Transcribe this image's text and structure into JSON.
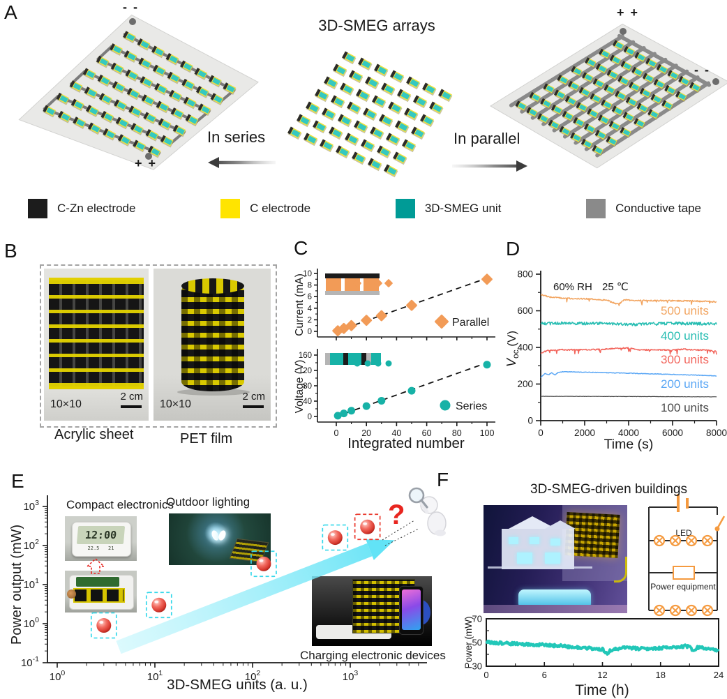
{
  "figure": {
    "panel_labels": {
      "A": "A",
      "B": "B",
      "C": "C",
      "D": "D",
      "E": "E",
      "F": "F"
    }
  },
  "panelA": {
    "title": "3D-SMEG arrays",
    "in_series": "In series",
    "in_parallel": "In parallel",
    "terminals": {
      "left_top": "- -",
      "left_bottom": "+ +",
      "right_top": "+ +",
      "right_side": "- -"
    },
    "legend": [
      {
        "name": "C-Zn electrode",
        "color": "#1c1c1c"
      },
      {
        "name": "C electrode",
        "color": "#ffe400"
      },
      {
        "name": "3D-SMEG unit",
        "color": "#009b96"
      },
      {
        "name": "Conductive tape",
        "color": "#8a8a8a"
      }
    ]
  },
  "panelB": {
    "photos": [
      {
        "label": "10×10",
        "scale": "2 cm",
        "caption": "Acrylic sheet"
      },
      {
        "label": "10×10",
        "scale": "2 cm",
        "caption": "PET film"
      }
    ]
  },
  "panelE": {
    "insets": {
      "compact": "Compact electronics",
      "outdoor": "Outdoor lighting",
      "charging": "Charging electronic devices"
    },
    "question_mark": "?",
    "clock": {
      "time": "12:00",
      "temp": "22.5",
      "hum": "21"
    }
  },
  "panelF": {
    "title": "3D-SMEG-driven buildings",
    "circuit": {
      "led_label": "LED",
      "equipment_label": "Power equipment",
      "accent": "#f59a3f"
    }
  },
  "chart_data": [
    {
      "id": "c_top",
      "panel": "C",
      "type": "scatter",
      "ylabel": "Current (mA)",
      "ylim": [
        0,
        10
      ],
      "yticks": [
        0,
        2,
        4,
        6,
        8,
        10
      ],
      "xlim": [
        0,
        100
      ],
      "xticks": [
        0,
        20,
        40,
        60,
        80,
        100
      ],
      "series": [
        {
          "name": "Parallel",
          "marker": "diamond",
          "color": "#f29b57",
          "x": [
            1,
            5,
            10,
            20,
            30,
            50,
            100
          ],
          "y": [
            0.1,
            0.5,
            1.0,
            1.9,
            2.7,
            4.5,
            9.0
          ]
        }
      ],
      "trend": [
        [
          0,
          0
        ],
        [
          100,
          9.2
        ]
      ]
    },
    {
      "id": "c_bottom",
      "panel": "C",
      "type": "scatter",
      "ylabel": "Voltage (V)",
      "ylim": [
        0,
        160
      ],
      "yticks": [
        0,
        40,
        80,
        120,
        160
      ],
      "xlabel": "Integrated number",
      "xlim": [
        0,
        100
      ],
      "xticks": [
        0,
        20,
        40,
        60,
        80,
        100
      ],
      "series": [
        {
          "name": "Series",
          "marker": "circle",
          "color": "#17b2a7",
          "x": [
            1,
            5,
            10,
            20,
            30,
            50,
            100
          ],
          "y": [
            2,
            8,
            15,
            27,
            41,
            67,
            135
          ]
        }
      ],
      "trend": [
        [
          0,
          0
        ],
        [
          100,
          140
        ]
      ]
    },
    {
      "id": "d",
      "panel": "D",
      "type": "line",
      "xlabel": "Time (s)",
      "xlim": [
        0,
        8000
      ],
      "xticks": [
        0,
        2000,
        4000,
        6000,
        8000
      ],
      "ylabel_main": "V",
      "ylabel_sub": "oc",
      "ylabel_unit": " (V)",
      "ylim": [
        0,
        800
      ],
      "yticks": [
        0,
        200,
        400,
        600,
        800
      ],
      "annotation": {
        "text1": "60% RH",
        "text2": "25 ℃",
        "color": "#e8251f"
      },
      "series": [
        {
          "name": "500 units",
          "color": "#f2a45f",
          "noise": 3.5,
          "spiky": true,
          "profile": [
            [
              0,
              688
            ],
            [
              400,
              675
            ],
            [
              1200,
              668
            ],
            [
              2400,
              664
            ],
            [
              2800,
              657
            ],
            [
              3000,
              661
            ],
            [
              3200,
              648
            ],
            [
              3400,
              640
            ],
            [
              3600,
              641
            ],
            [
              3800,
              659
            ],
            [
              4200,
              657
            ],
            [
              5000,
              656
            ],
            [
              6000,
              655
            ],
            [
              7000,
              653
            ],
            [
              8000,
              649
            ]
          ]
        },
        {
          "name": "400 units",
          "color": "#27bdb2",
          "noise": 8,
          "spiky": false,
          "profile": [
            [
              0,
              530
            ],
            [
              1000,
              532
            ],
            [
              2000,
              530
            ],
            [
              3000,
              531
            ],
            [
              4000,
              525
            ],
            [
              5000,
              528
            ],
            [
              6000,
              532
            ],
            [
              7000,
              530
            ],
            [
              8000,
              528
            ]
          ]
        },
        {
          "name": "300 units",
          "color": "#f2655c",
          "noise": 3.5,
          "spiky": true,
          "profile": [
            [
              0,
              368
            ],
            [
              300,
              382
            ],
            [
              1000,
              387
            ],
            [
              2000,
              387
            ],
            [
              3000,
              390
            ],
            [
              3500,
              396
            ],
            [
              4000,
              397
            ],
            [
              4500,
              386
            ],
            [
              5000,
              387
            ],
            [
              6000,
              386
            ],
            [
              6500,
              390
            ],
            [
              7000,
              387
            ],
            [
              7500,
              385
            ],
            [
              8000,
              377
            ]
          ]
        },
        {
          "name": "200 units",
          "color": "#5ba7f5",
          "noise": 1.5,
          "spiky": false,
          "profile": [
            [
              0,
              236
            ],
            [
              200,
              258
            ],
            [
              350,
              250
            ],
            [
              500,
              262
            ],
            [
              650,
              250
            ],
            [
              800,
              264
            ],
            [
              1000,
              267
            ],
            [
              1500,
              266
            ],
            [
              3000,
              262
            ],
            [
              5000,
              256
            ],
            [
              7000,
              249
            ],
            [
              8000,
              244
            ]
          ]
        },
        {
          "name": "100 units",
          "color": "#4a4a4a",
          "noise": 0.7,
          "spiky": false,
          "profile": [
            [
              0,
              133
            ],
            [
              4000,
              132
            ],
            [
              8000,
              130
            ]
          ]
        }
      ]
    },
    {
      "id": "e",
      "panel": "E",
      "type": "scatter",
      "xlabel": "3D-SMEG units (a. u.)",
      "ylabel": "Power output (mW)",
      "xscale": "log",
      "yscale": "log",
      "x_exp_ticks": [
        0,
        1,
        2,
        3
      ],
      "y_exp_ticks": [
        -1,
        0,
        1,
        2,
        3
      ],
      "xlim": [
        1,
        4000
      ],
      "ylim": [
        0.1,
        1000
      ],
      "points": [
        {
          "x": 3,
          "y": 0.9,
          "box": "cyan"
        },
        {
          "x": 11,
          "y": 3,
          "box": "cyan"
        },
        {
          "x": 130,
          "y": 34,
          "box": "cyan"
        },
        {
          "x": 700,
          "y": 160,
          "box": "cyan"
        },
        {
          "x": 1500,
          "y": 300,
          "box": "red"
        }
      ],
      "box_colors": {
        "cyan": "#35d8ea",
        "red": "#ea3a2e"
      },
      "marker_color": "#e8473c",
      "arrow_color": "#5ae1f5"
    },
    {
      "id": "f",
      "panel": "F",
      "type": "line",
      "xlabel": "Time (h)",
      "xlim": [
        0,
        24
      ],
      "xticks": [
        0,
        6,
        12,
        18,
        24
      ],
      "ylabel": "Power (mW)",
      "ylim": [
        30,
        70
      ],
      "yticks": [
        30,
        50,
        70
      ],
      "series": [
        {
          "name": "Power",
          "color": "#22c7b8",
          "noise": 1.2,
          "spiky": false,
          "profile": [
            [
              0,
              50.5
            ],
            [
              1,
              49.8
            ],
            [
              2,
              49.2
            ],
            [
              3,
              49
            ],
            [
              4,
              48.6
            ],
            [
              5,
              48.2
            ],
            [
              6,
              48
            ],
            [
              7,
              47.4
            ],
            [
              8,
              47
            ],
            [
              9,
              46.2
            ],
            [
              10,
              45.6
            ],
            [
              11,
              45
            ],
            [
              12,
              44.3
            ],
            [
              12.5,
              40.5
            ],
            [
              12.8,
              43
            ],
            [
              13.5,
              44.8
            ],
            [
              14,
              45.3
            ],
            [
              15,
              45.2
            ],
            [
              16,
              44.8
            ],
            [
              17,
              45
            ],
            [
              18,
              45.3
            ],
            [
              19,
              45.6
            ],
            [
              20,
              46
            ],
            [
              20.6,
              47.2
            ],
            [
              21,
              46
            ],
            [
              21.4,
              43.2
            ],
            [
              21.8,
              45.8
            ],
            [
              22.5,
              45.2
            ],
            [
              23,
              44.8
            ],
            [
              23.6,
              44
            ],
            [
              24,
              42.6
            ]
          ]
        }
      ]
    }
  ]
}
